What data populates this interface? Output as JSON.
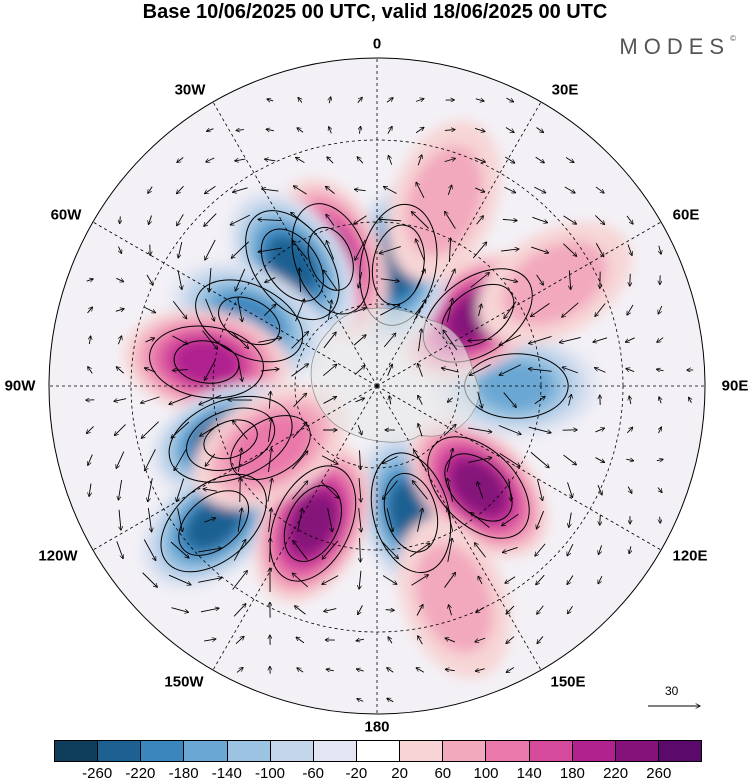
{
  "title": "Base 10/06/2025 00 UTC, valid 18/06/2025 00 UTC",
  "brand": "MODES",
  "brand_mark": "©",
  "lon_labels": {
    "n0": "0",
    "e30": "30E",
    "e60": "60E",
    "e90": "90E",
    "e120": "120E",
    "e150": "150E",
    "s180": "180",
    "w150": "150W",
    "w120": "120W",
    "w90": "90W",
    "w60": "60W",
    "w30": "30W"
  },
  "vector_scale_label": "30",
  "colorbar": {
    "colors": [
      "#0e3e5c",
      "#1d6192",
      "#3a86bd",
      "#6aa7d3",
      "#9cc4e2",
      "#c4d6eb",
      "#e3e6f2",
      "#ffffff",
      "#f7d5d6",
      "#f2a9bd",
      "#ea78aa",
      "#d64a9c",
      "#b0238f",
      "#84127a",
      "#5a0a6b"
    ],
    "labels": [
      "-260",
      "-220",
      "-180",
      "-140",
      "-100",
      "-60",
      "-20",
      "20",
      "60",
      "100",
      "140",
      "180",
      "220",
      "260"
    ]
  },
  "anomaly_cells": [
    {
      "lon": 15,
      "colat": 32,
      "value": -250
    },
    {
      "lon": 45,
      "colat": 35,
      "value": 250
    },
    {
      "lon": 90,
      "colat": 34,
      "value": -150
    },
    {
      "lon": 125,
      "colat": 30,
      "value": 220
    },
    {
      "lon": 170,
      "colat": 30,
      "value": -230
    },
    {
      "lon": 200,
      "colat": 33,
      "value": 210
    },
    {
      "lon": 215,
      "colat": 36,
      "value": -230
    },
    {
      "lon": 243,
      "colat": 35,
      "value": -200
    },
    {
      "lon": 262,
      "colat": 42,
      "value": 180
    },
    {
      "lon": 290,
      "colat": 38,
      "value": -260
    },
    {
      "lon": 310,
      "colat": 52,
      "value": -250
    },
    {
      "lon": 335,
      "colat": 37,
      "value": 230
    },
    {
      "lon": 160,
      "colat": 48,
      "value": 80
    },
    {
      "lon": 120,
      "colat": 50,
      "value": 80
    },
    {
      "lon": 300,
      "colat": 30,
      "value": 100
    },
    {
      "lon": 20,
      "colat": 55,
      "value": 60
    }
  ]
}
